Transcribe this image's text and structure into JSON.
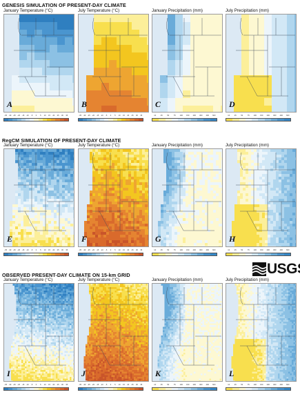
{
  "sections": [
    {
      "title": "GENESIS SIMULATION OF PRESENT-DAY CLIMATE"
    },
    {
      "title": "RegCM SIMULATION OF PRESENT-DAY CLIMATE"
    },
    {
      "title": "OBSERVED PRESENT-DAY CLIMATE ON 15-km GRID"
    }
  ],
  "columns": [
    {
      "title": "January Temperature (°C)"
    },
    {
      "title": "July Temperature (°C)"
    },
    {
      "title": "January Precipitation (mm)"
    },
    {
      "title": "July Precipitation (mm)"
    }
  ],
  "panels": [
    {
      "letter": "A"
    },
    {
      "letter": "B"
    },
    {
      "letter": "C"
    },
    {
      "letter": "D"
    },
    {
      "letter": "E"
    },
    {
      "letter": "F"
    },
    {
      "letter": "G"
    },
    {
      "letter": "H"
    },
    {
      "letter": "I"
    },
    {
      "letter": "J"
    },
    {
      "letter": "K"
    },
    {
      "letter": "L"
    }
  ],
  "legends": {
    "temperature": {
      "colors": [
        "#2f7fc0",
        "#4a95cf",
        "#69abd9",
        "#8cc1e4",
        "#b0d6ee",
        "#d2e8f6",
        "#ecf5fb",
        "#fdf8d2",
        "#fcef9a",
        "#f8df4e",
        "#f3c61f",
        "#eea531",
        "#e58431",
        "#d96a2c",
        "#c9552a"
      ],
      "jan_ticks": [
        "-35",
        "-30",
        "-25",
        "-20",
        "-15",
        "-10",
        "-5",
        "0",
        "5",
        "10",
        "15",
        "20",
        "25",
        "30",
        "35"
      ],
      "jul_ticks": [
        "-35",
        "-30",
        "-25",
        "-20",
        "-15",
        "-10",
        "-5",
        "0",
        "5",
        "10",
        "15",
        "20",
        "25",
        "30",
        "35"
      ]
    },
    "precipitation": {
      "colors": [
        "#f8df4e",
        "#fcef9a",
        "#fdf8d2",
        "#ecf5fb",
        "#d2e8f6",
        "#b0d6ee",
        "#8cc1e4",
        "#69abd9",
        "#4a95cf",
        "#3588c8"
      ],
      "ticks": [
        "10",
        "25",
        "50",
        "75",
        "100",
        "150",
        "200",
        "300",
        "400",
        "600"
      ]
    }
  },
  "logo": {
    "text": "USGS"
  }
}
